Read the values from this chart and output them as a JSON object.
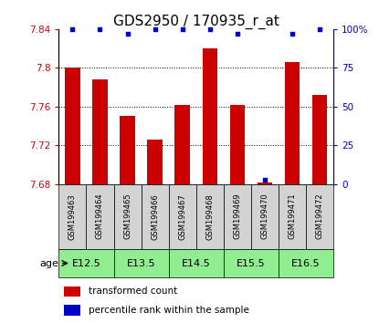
{
  "title": "GDS2950 / 170935_r_at",
  "samples": [
    "GSM199463",
    "GSM199464",
    "GSM199465",
    "GSM199466",
    "GSM199467",
    "GSM199468",
    "GSM199469",
    "GSM199470",
    "GSM199471",
    "GSM199472"
  ],
  "red_values": [
    7.8,
    7.788,
    7.75,
    7.726,
    7.762,
    7.82,
    7.762,
    7.682,
    7.806,
    7.772
  ],
  "blue_values": [
    100,
    100,
    97,
    100,
    100,
    100,
    97,
    3,
    97,
    100
  ],
  "ylim_left": [
    7.68,
    7.84
  ],
  "ylim_right": [
    0,
    100
  ],
  "yticks_left": [
    7.68,
    7.72,
    7.76,
    7.8,
    7.84
  ],
  "yticks_right": [
    0,
    25,
    50,
    75,
    100
  ],
  "age_groups": [
    {
      "label": "E12.5",
      "samples": [
        0,
        1
      ]
    },
    {
      "label": "E13.5",
      "samples": [
        2,
        3
      ]
    },
    {
      "label": "E14.5",
      "samples": [
        4,
        5
      ]
    },
    {
      "label": "E15.5",
      "samples": [
        6,
        7
      ]
    },
    {
      "label": "E16.5",
      "samples": [
        8,
        9
      ]
    }
  ],
  "age_bg_color": "#90EE90",
  "sample_bg_color": "#D3D3D3",
  "bar_color": "#CC0000",
  "dot_color": "#0000CC",
  "bar_bottom": 7.68,
  "title_fontsize": 11,
  "tick_fontsize": 7.5,
  "sample_fontsize": 6.0,
  "age_fontsize": 8,
  "legend_fontsize": 7.5
}
